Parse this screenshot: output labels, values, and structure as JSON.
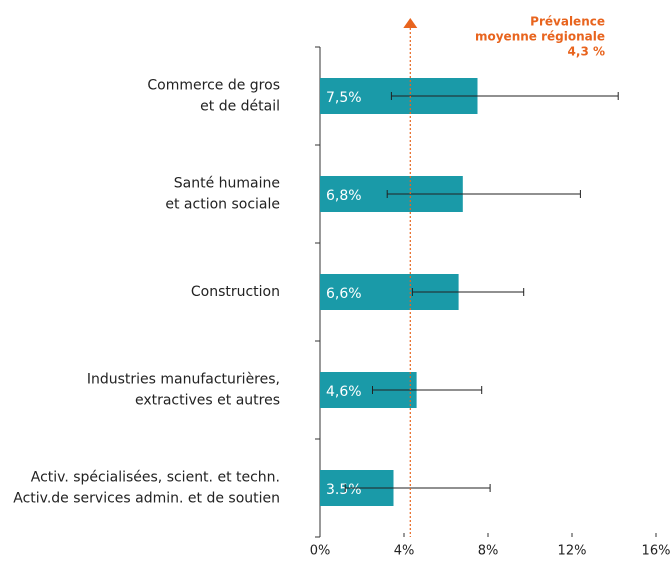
{
  "chart_data": {
    "type": "hbar",
    "categories": [
      [
        "Commerce de gros",
        "et de détail"
      ],
      [
        "Santé humaine",
        "et action sociale"
      ],
      [
        "Construction"
      ],
      [
        "Industries manufacturières,",
        "extractives et autres"
      ],
      [
        "Activ. spécialisées, scient. et techn.",
        "Activ.de services admin. et de soutien"
      ]
    ],
    "values": [
      7.5,
      6.8,
      6.6,
      4.6,
      3.5
    ],
    "value_labels": [
      "7,5%",
      "6,8%",
      "6,6%",
      "4,6%",
      "3.5%"
    ],
    "ci_low": [
      3.4,
      3.2,
      4.4,
      2.5,
      1.2
    ],
    "ci_high": [
      14.2,
      12.4,
      9.7,
      7.7,
      8.1
    ],
    "color": "#1a9aa8",
    "xlim": [
      0,
      16
    ],
    "xticks": [
      {
        "value": 0,
        "label": "0%"
      },
      {
        "value": 4,
        "label": "4%"
      },
      {
        "value": 8,
        "label": "8%"
      },
      {
        "value": 12,
        "label": "12%"
      },
      {
        "value": 16,
        "label": "16%"
      }
    ],
    "reference": {
      "value": 4.3,
      "label": [
        "Prévalence",
        "moyenne régionale",
        "4,3 %"
      ],
      "color": "#e8641e"
    }
  }
}
